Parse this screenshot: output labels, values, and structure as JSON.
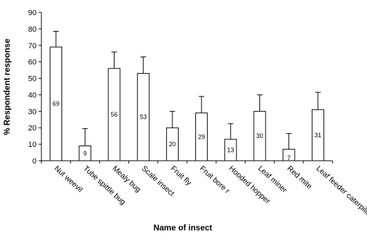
{
  "chart_data": {
    "type": "bar",
    "categories": [
      "Nut weevil",
      "Tube spittle bug",
      "Mealy bug",
      "Scale insect",
      "Fruit fly",
      "Fruit bore r",
      "Hooded hopper",
      "Leaf miner",
      "Red mite",
      "Leaf feeder caterpillar"
    ],
    "values": [
      69,
      9,
      56,
      53,
      20,
      29,
      13,
      30,
      7,
      31
    ],
    "data_labels": [
      "69",
      "9",
      "56",
      "53",
      "20",
      "29",
      "13",
      "30",
      "7",
      "31"
    ],
    "error_upper": [
      78.5,
      19.5,
      66,
      63,
      30,
      39,
      22.5,
      40,
      16.5,
      41.5
    ],
    "xlabel": "Name of insect",
    "ylabel": "% Respondent response",
    "ylim": [
      0,
      90
    ],
    "yticks": [
      0,
      10,
      20,
      30,
      40,
      50,
      60,
      70,
      80,
      90
    ],
    "grid": false,
    "legend": "none",
    "bar_fill": "#ffffff",
    "bar_stroke": "#000000"
  }
}
